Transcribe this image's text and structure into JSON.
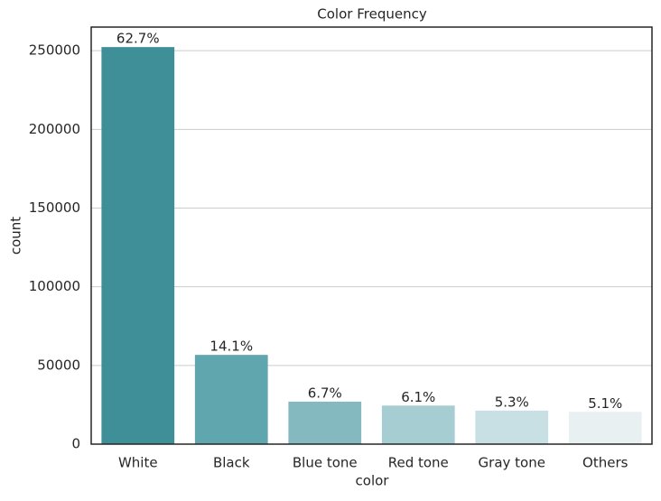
{
  "chart_data": {
    "type": "bar",
    "title": "Color Frequency",
    "x_label": "color",
    "y_label": "count",
    "categories": [
      "White",
      "Black",
      "Blue tone",
      "Red tone",
      "Gray tone",
      "Others"
    ],
    "values": [
      252300,
      56700,
      27000,
      24500,
      21300,
      20500
    ],
    "bar_labels": [
      "62.7%",
      "14.1%",
      "6.7%",
      "6.1%",
      "5.3%",
      "5.1%"
    ],
    "colors": [
      "#3f8f98",
      "#5fa6ae",
      "#84b9c0",
      "#a6cdd2",
      "#c8e0e3",
      "#e9f0f1"
    ],
    "ylim": [
      0,
      265000
    ],
    "yticks": [
      0,
      50000,
      100000,
      150000,
      200000,
      250000
    ],
    "grid": true
  }
}
